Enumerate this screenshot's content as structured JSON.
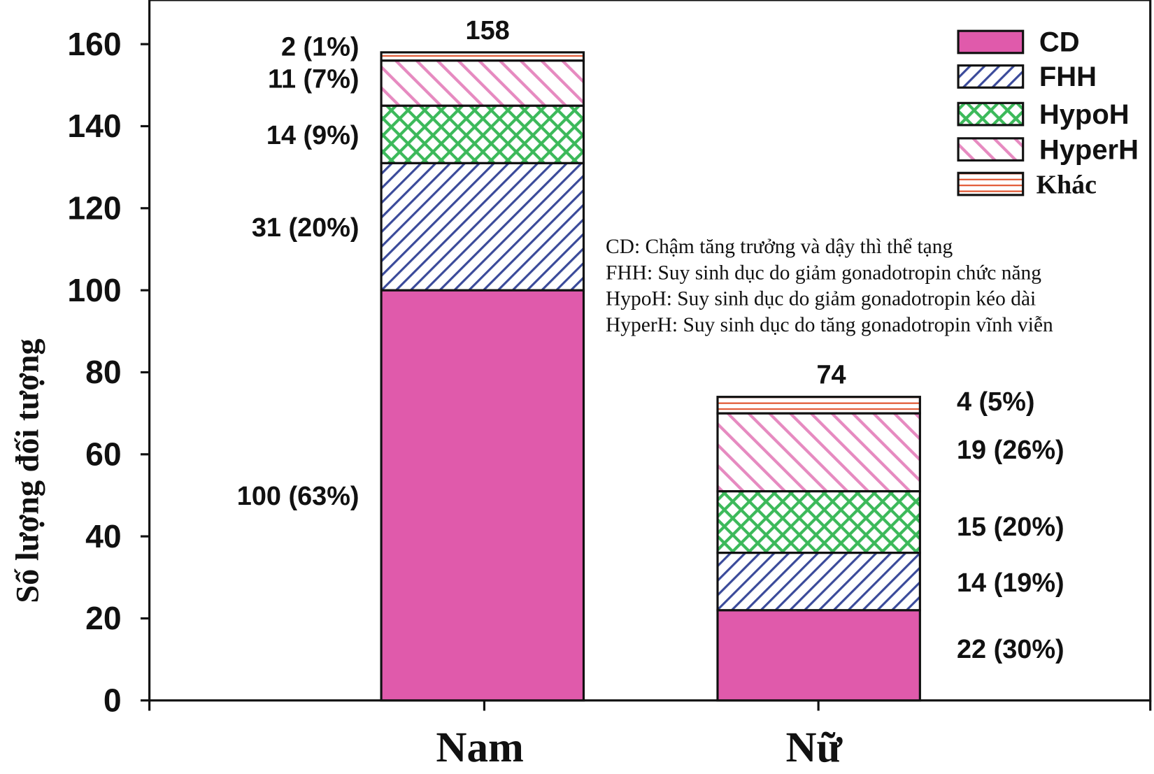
{
  "chart_data": {
    "type": "bar",
    "stacked": true,
    "categories": [
      "Nam",
      "Nữ"
    ],
    "ylabel": "Số lượng đối tượng",
    "xlabel": "",
    "ylim": [
      0,
      160
    ],
    "yticks": [
      0,
      20,
      40,
      60,
      80,
      100,
      120,
      140,
      160
    ],
    "totals": [
      158,
      74
    ],
    "series": [
      {
        "name": "CD",
        "values": [
          100,
          22
        ],
        "labels": [
          "100 (63%)",
          "22 (30%)"
        ],
        "color": "#e05aab",
        "pattern": "solid"
      },
      {
        "name": "FHH",
        "values": [
          31,
          14
        ],
        "labels": [
          "31 (20%)",
          "14 (19%)"
        ],
        "color": "#3a4a9a",
        "pattern": "diagonal-up"
      },
      {
        "name": "HypoH",
        "values": [
          14,
          15
        ],
        "labels": [
          "14 (9%)",
          "15 (20%)"
        ],
        "color": "#3cb95a",
        "pattern": "crosshatch"
      },
      {
        "name": "HyperH",
        "values": [
          11,
          19
        ],
        "labels": [
          "11 (7%)",
          "19 (26%)"
        ],
        "color": "#e68ac0",
        "pattern": "diagonal-down"
      },
      {
        "name": "Khác",
        "values": [
          2,
          4
        ],
        "labels": [
          "2 (1%)",
          "4 (5%)"
        ],
        "color": "#e0502a",
        "pattern": "horizontal"
      }
    ],
    "legend_position": "top-right",
    "annotations": [
      "CD: Chậm tăng trưởng và dậy thì thể tạng",
      "FHH: Suy sinh dục do giảm gonadotropin chức năng",
      "HypoH: Suy sinh dục do giảm gonadotropin kéo dài",
      "HyperH: Suy sinh dục do tăng gonadotropin vĩnh viễn"
    ],
    "grid": false
  }
}
